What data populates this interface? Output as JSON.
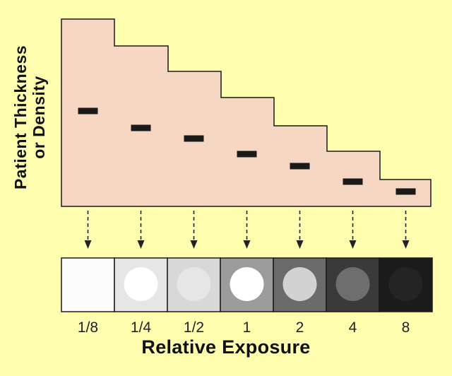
{
  "y_title_lines": [
    "Patient Thickness",
    "or Density"
  ],
  "x_title": "Relative Exposure",
  "colors": {
    "background": "#FEFEAE",
    "thickness_fill": "#F5D7C4",
    "outline": "#1A1A1A",
    "marker": "#1A1A1A",
    "arrow": "#222222"
  },
  "exposures": [
    "1/8",
    "1/4",
    "1/2",
    "1",
    "2",
    "4",
    "8"
  ],
  "film_squares": [
    {
      "exposure": "1/8",
      "background": "#FBFBFB",
      "disc": null
    },
    {
      "exposure": "1/4",
      "background": "#E6E6E6",
      "disc": "#FFFFFF"
    },
    {
      "exposure": "1/2",
      "background": "#D8D8D8",
      "disc": "#E6E6E6"
    },
    {
      "exposure": "1",
      "background": "#9C9C9C",
      "disc": "#FFFFFF"
    },
    {
      "exposure": "2",
      "background": "#6B6B6B",
      "disc": "#D2D2D2"
    },
    {
      "exposure": "4",
      "background": "#3A3A3A",
      "disc": "#6E6E6E"
    },
    {
      "exposure": "8",
      "background": "#1B1B1B",
      "disc": "#242424"
    }
  ]
}
